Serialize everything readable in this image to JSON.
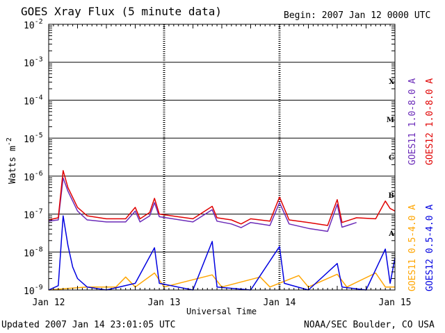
{
  "header": {
    "title": "GOES Xray Flux (5 minute data)",
    "begin": "Begin:  2007 Jan 12 0000 UTC"
  },
  "footer": {
    "updated": "Updated 2007 Jan 14 23:01:05 UTC",
    "credit": "NOAA/SEC Boulder, CO USA"
  },
  "chart_data": {
    "type": "line",
    "title": "GOES Xray Flux (5 minute data)",
    "xlabel": "Universal Time",
    "ylabel": "Watts m",
    "ylabel_sup": "-2",
    "yscale": "log",
    "ylim": [
      1e-09,
      0.01
    ],
    "xlim": [
      "2007-01-12 00:00",
      "2007-01-15 00:00"
    ],
    "x_ticks": [
      "Jan 12",
      "Jan 13",
      "Jan 14",
      "Jan 15"
    ],
    "y_ticks": [
      {
        "base": "10",
        "exp": "-9"
      },
      {
        "base": "10",
        "exp": "-8"
      },
      {
        "base": "10",
        "exp": "-7"
      },
      {
        "base": "10",
        "exp": "-6"
      },
      {
        "base": "10",
        "exp": "-5"
      },
      {
        "base": "10",
        "exp": "-4"
      },
      {
        "base": "10",
        "exp": "-3"
      },
      {
        "base": "10",
        "exp": "-2"
      }
    ],
    "flare_classes": [
      "A",
      "B",
      "C",
      "M",
      "X"
    ],
    "grid": true,
    "legend": "right",
    "series": [
      {
        "name": "GOES12 1.0-8.0 A",
        "color": "#e00000",
        "points": [
          [
            "2007-01-12 00:00",
            7e-08
          ],
          [
            "2007-01-12 02:00",
            8e-08
          ],
          [
            "2007-01-12 03:00",
            1.4e-06
          ],
          [
            "2007-01-12 04:00",
            5e-07
          ],
          [
            "2007-01-12 06:00",
            1.5e-07
          ],
          [
            "2007-01-12 08:00",
            9e-08
          ],
          [
            "2007-01-12 12:00",
            7.5e-08
          ],
          [
            "2007-01-12 16:00",
            7.5e-08
          ],
          [
            "2007-01-12 18:00",
            1.5e-07
          ],
          [
            "2007-01-12 19:00",
            7.5e-08
          ],
          [
            "2007-01-12 21:00",
            1.1e-07
          ],
          [
            "2007-01-12 22:00",
            2.6e-07
          ],
          [
            "2007-01-12 23:00",
            1e-07
          ],
          [
            "2007-01-13 06:00",
            7.5e-08
          ],
          [
            "2007-01-13 10:00",
            1.6e-07
          ],
          [
            "2007-01-13 11:00",
            8e-08
          ],
          [
            "2007-01-13 14:00",
            7e-08
          ],
          [
            "2007-01-13 16:00",
            5.5e-08
          ],
          [
            "2007-01-13 18:00",
            7.5e-08
          ],
          [
            "2007-01-13 22:00",
            6.5e-08
          ],
          [
            "2007-01-14 00:00",
            2.8e-07
          ],
          [
            "2007-01-14 02:00",
            7e-08
          ],
          [
            "2007-01-14 06:00",
            6e-08
          ],
          [
            "2007-01-14 10:00",
            5e-08
          ],
          [
            "2007-01-14 12:00",
            2.4e-07
          ],
          [
            "2007-01-14 13:00",
            6e-08
          ],
          [
            "2007-01-14 16:00",
            8e-08
          ],
          [
            "2007-01-14 20:00",
            7.5e-08
          ],
          [
            "2007-01-14 22:00",
            2.2e-07
          ],
          [
            "2007-01-14 23:00",
            1.4e-07
          ],
          [
            "2007-01-15 00:00",
            1.2e-07
          ]
        ]
      },
      {
        "name": "GOES11 1.0-8.0 A",
        "color": "#6a2ab8",
        "points": [
          [
            "2007-01-12 00:00",
            6.5e-08
          ],
          [
            "2007-01-12 02:00",
            7e-08
          ],
          [
            "2007-01-12 03:00",
            9e-07
          ],
          [
            "2007-01-12 04:00",
            4e-07
          ],
          [
            "2007-01-12 06:00",
            1.2e-07
          ],
          [
            "2007-01-12 08:00",
            7e-08
          ],
          [
            "2007-01-12 12:00",
            6.2e-08
          ],
          [
            "2007-01-12 16:00",
            6.2e-08
          ],
          [
            "2007-01-12 18:00",
            1.2e-07
          ],
          [
            "2007-01-12 19:00",
            6.2e-08
          ],
          [
            "2007-01-12 21:00",
            9e-08
          ],
          [
            "2007-01-12 22:00",
            2e-07
          ],
          [
            "2007-01-12 23:00",
            8.5e-08
          ],
          [
            "2007-01-13 06:00",
            6.2e-08
          ],
          [
            "2007-01-13 10:00",
            1.3e-07
          ],
          [
            "2007-01-13 11:00",
            6.5e-08
          ],
          [
            "2007-01-13 14:00",
            5.5e-08
          ],
          [
            "2007-01-13 16:00",
            4.4e-08
          ],
          [
            "2007-01-13 18:00",
            6e-08
          ],
          [
            "2007-01-13 22:00",
            5e-08
          ],
          [
            "2007-01-14 00:00",
            2e-07
          ],
          [
            "2007-01-14 02:00",
            5.5e-08
          ],
          [
            "2007-01-14 06:00",
            4.2e-08
          ],
          [
            "2007-01-14 10:00",
            3.5e-08
          ],
          [
            "2007-01-14 12:00",
            1.8e-07
          ],
          [
            "2007-01-14 13:00",
            4.5e-08
          ],
          [
            "2007-01-14 16:00",
            6e-08
          ]
        ]
      },
      {
        "name": "GOES11 0.5-4.0 A",
        "color": "#ffa500",
        "points": [
          [
            "2007-01-12 00:00",
            1e-09
          ],
          [
            "2007-01-12 04:00",
            1.1e-09
          ],
          [
            "2007-01-12 08:00",
            1.2e-09
          ],
          [
            "2007-01-12 14:00",
            1.2e-09
          ],
          [
            "2007-01-12 16:00",
            2.2e-09
          ],
          [
            "2007-01-12 18:00",
            1.2e-09
          ],
          [
            "2007-01-12 22:00",
            2.8e-09
          ],
          [
            "2007-01-13 00:00",
            1.2e-09
          ],
          [
            "2007-01-13 10:00",
            2.5e-09
          ],
          [
            "2007-01-13 12:00",
            1.2e-09
          ],
          [
            "2007-01-13 20:00",
            2.2e-09
          ],
          [
            "2007-01-13 22:00",
            1.2e-09
          ],
          [
            "2007-01-14 04:00",
            2.4e-09
          ],
          [
            "2007-01-14 06:00",
            1.2e-09
          ],
          [
            "2007-01-14 12:00",
            2.6e-09
          ],
          [
            "2007-01-14 14:00",
            1.2e-09
          ],
          [
            "2007-01-14 20:00",
            2.8e-09
          ],
          [
            "2007-01-14 22:00",
            1.2e-09
          ],
          [
            "2007-01-15 00:00",
            1.2e-09
          ]
        ]
      },
      {
        "name": "GOES12 0.5-4.0 A",
        "color": "#0000e0",
        "points": [
          [
            "2007-01-12 00:00",
            1e-09
          ],
          [
            "2007-01-12 02:00",
            1.3e-09
          ],
          [
            "2007-01-12 03:00",
            9e-08
          ],
          [
            "2007-01-12 04:00",
            1.5e-08
          ],
          [
            "2007-01-12 05:00",
            4e-09
          ],
          [
            "2007-01-12 06:00",
            2e-09
          ],
          [
            "2007-01-12 08:00",
            1.2e-09
          ],
          [
            "2007-01-12 12:00",
            1e-09
          ],
          [
            "2007-01-12 18:00",
            1.5e-09
          ],
          [
            "2007-01-12 22:00",
            1.3e-08
          ],
          [
            "2007-01-12 23:00",
            1.5e-09
          ],
          [
            "2007-01-13 06:00",
            1e-09
          ],
          [
            "2007-01-13 10:00",
            1.9e-08
          ],
          [
            "2007-01-13 11:00",
            1.2e-09
          ],
          [
            "2007-01-13 18:00",
            1e-09
          ],
          [
            "2007-01-14 00:00",
            1.4e-08
          ],
          [
            "2007-01-14 01:00",
            1.5e-09
          ],
          [
            "2007-01-14 06:00",
            1e-09
          ],
          [
            "2007-01-14 12:00",
            5e-09
          ],
          [
            "2007-01-14 13:00",
            1.2e-09
          ],
          [
            "2007-01-14 18:00",
            1e-09
          ],
          [
            "2007-01-14 22:00",
            1.2e-08
          ],
          [
            "2007-01-14 23:00",
            1.5e-09
          ],
          [
            "2007-01-15 00:00",
            7e-09
          ]
        ]
      }
    ]
  }
}
